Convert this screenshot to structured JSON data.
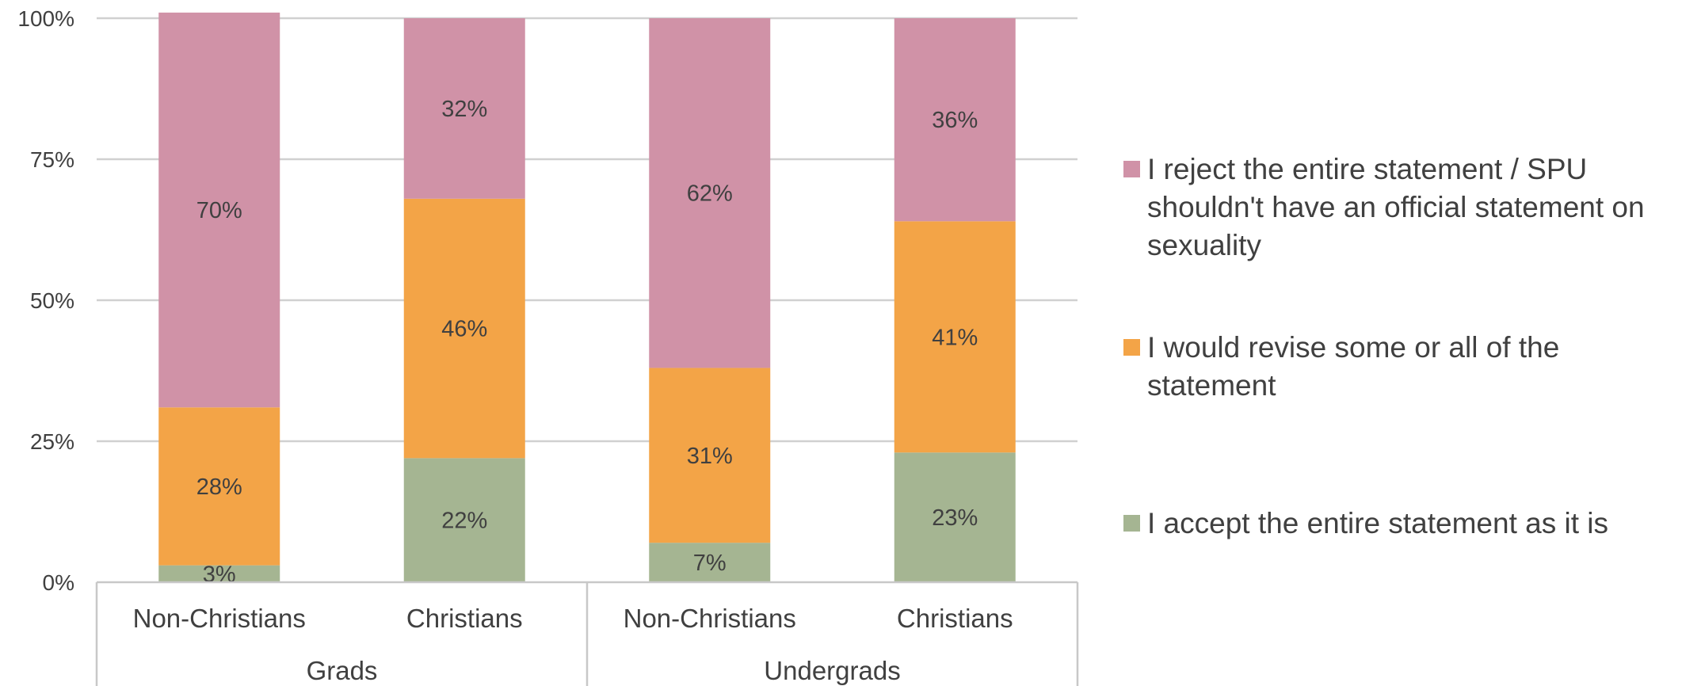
{
  "chart_data": {
    "type": "bar",
    "stacked": true,
    "normalized": true,
    "groups": [
      {
        "label": "Grads",
        "categories": [
          "Non-Christians",
          "Christians"
        ]
      },
      {
        "label": "Undergrads",
        "categories": [
          "Non-Christians",
          "Christians"
        ]
      }
    ],
    "categories": [
      "Non-Christians",
      "Christians",
      "Non-Christians",
      "Christians"
    ],
    "series": [
      {
        "name": "I accept the entire statement as it is",
        "color": "#a5b592",
        "values": [
          3,
          22,
          7,
          23
        ],
        "labels": [
          "3%",
          "22%",
          "7%",
          "23%"
        ]
      },
      {
        "name": "I would revise some or all of the statement",
        "color": "#f3a447",
        "values": [
          28,
          46,
          31,
          41
        ],
        "labels": [
          "28%",
          "46%",
          "31%",
          "41%"
        ]
      },
      {
        "name": "I reject the entire statement / SPU shouldn't have an official statement on sexuality",
        "color": "#d092a7",
        "values": [
          70,
          32,
          62,
          36
        ],
        "labels": [
          "70%",
          "32%",
          "62%",
          "36%"
        ]
      }
    ],
    "yticks": [
      "0%",
      "25%",
      "50%",
      "75%",
      "100%"
    ],
    "ylim": [
      0,
      100
    ],
    "grid": true,
    "legend_position": "right"
  }
}
